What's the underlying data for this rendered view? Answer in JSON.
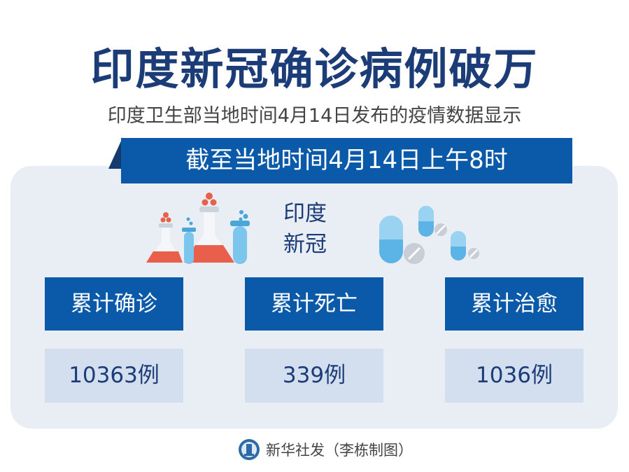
{
  "title": "印度新冠确诊病例破万",
  "subtitle": "印度卫生部当地时间4月14日发布的疫情数据显示",
  "banner": "截至当地时间4月14日上午8时",
  "center_label": {
    "line1": "印度",
    "line2": "新冠"
  },
  "stats": [
    {
      "label": "累计确诊",
      "value": "10363例"
    },
    {
      "label": "累计死亡",
      "value": "339例"
    },
    {
      "label": "累计治愈",
      "value": "1036例"
    }
  ],
  "footer": {
    "credit": "新华社发（李栋制图）",
    "logo": "xinhua-logo"
  },
  "colors": {
    "navy": "#1c3c78",
    "blue": "#0b5aaa",
    "panel": "#e9edf4",
    "value_bg": "#d3dfee",
    "flask_liquid": "#e8604c",
    "pill": "#5bb4e5"
  }
}
